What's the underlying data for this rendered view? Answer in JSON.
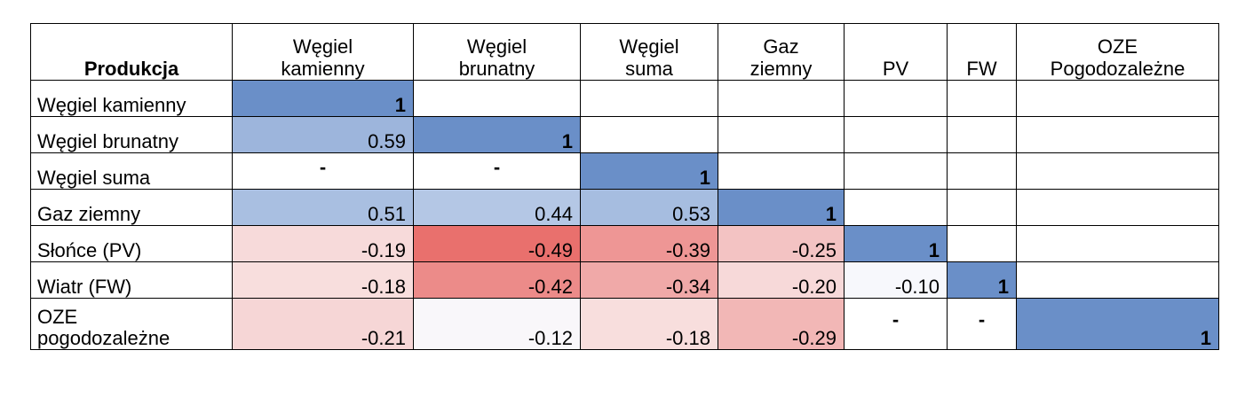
{
  "table": {
    "corner_label": "Produkcja",
    "columns": [
      [
        "Węgiel",
        "kamienny"
      ],
      [
        "Węgiel",
        "brunatny"
      ],
      [
        "Węgiel",
        "suma"
      ],
      [
        "Gaz",
        "ziemny"
      ],
      [
        "",
        "PV"
      ],
      [
        "",
        "FW"
      ],
      [
        "OZE",
        "Pogodozależne"
      ]
    ],
    "rows": [
      {
        "label": [
          "Węgiel kamienny"
        ],
        "cells": [
          {
            "v": "1",
            "bg": "#6a8fc8"
          },
          {
            "v": "",
            "bg": "#ffffff"
          },
          {
            "v": "",
            "bg": "#ffffff"
          },
          {
            "v": "",
            "bg": "#ffffff"
          },
          {
            "v": "",
            "bg": "#ffffff"
          },
          {
            "v": "",
            "bg": "#ffffff"
          },
          {
            "v": "",
            "bg": "#ffffff"
          }
        ]
      },
      {
        "label": [
          "Węgiel brunatny"
        ],
        "cells": [
          {
            "v": "0.59",
            "bg": "#9db5dc"
          },
          {
            "v": "1",
            "bg": "#6a8fc8"
          },
          {
            "v": "",
            "bg": "#ffffff"
          },
          {
            "v": "",
            "bg": "#ffffff"
          },
          {
            "v": "",
            "bg": "#ffffff"
          },
          {
            "v": "",
            "bg": "#ffffff"
          },
          {
            "v": "",
            "bg": "#ffffff"
          }
        ]
      },
      {
        "label": [
          "Węgiel suma"
        ],
        "cells": [
          {
            "v": "-",
            "bg": "#ffffff"
          },
          {
            "v": "-",
            "bg": "#ffffff"
          },
          {
            "v": "1",
            "bg": "#6a8fc8"
          },
          {
            "v": "",
            "bg": "#ffffff"
          },
          {
            "v": "",
            "bg": "#ffffff"
          },
          {
            "v": "",
            "bg": "#ffffff"
          },
          {
            "v": "",
            "bg": "#ffffff"
          }
        ]
      },
      {
        "label": [
          "Gaz ziemny"
        ],
        "cells": [
          {
            "v": "0.51",
            "bg": "#a9bfe1"
          },
          {
            "v": "0.44",
            "bg": "#b4c7e5"
          },
          {
            "v": "0.53",
            "bg": "#a6bde0"
          },
          {
            "v": "1",
            "bg": "#6a8fc8"
          },
          {
            "v": "",
            "bg": "#ffffff"
          },
          {
            "v": "",
            "bg": "#ffffff"
          },
          {
            "v": "",
            "bg": "#ffffff"
          }
        ]
      },
      {
        "label": [
          "Słońce (PV)"
        ],
        "cells": [
          {
            "v": "-0.19",
            "bg": "#f7dada"
          },
          {
            "v": "-0.49",
            "bg": "#e9706d"
          },
          {
            "v": "-0.39",
            "bg": "#ee9695"
          },
          {
            "v": "-0.25",
            "bg": "#f3c3c3"
          },
          {
            "v": "1",
            "bg": "#6a8fc8"
          },
          {
            "v": "",
            "bg": "#ffffff"
          },
          {
            "v": "",
            "bg": "#ffffff"
          }
        ]
      },
      {
        "label": [
          "Wiatr (FW)"
        ],
        "cells": [
          {
            "v": "-0.18",
            "bg": "#f8dedd"
          },
          {
            "v": "-0.42",
            "bg": "#ec8b89"
          },
          {
            "v": "-0.34",
            "bg": "#f0a9a8"
          },
          {
            "v": "-0.20",
            "bg": "#f7d9d9"
          },
          {
            "v": "-0.10",
            "bg": "#f7f8fc"
          },
          {
            "v": "1",
            "bg": "#6a8fc8"
          },
          {
            "v": "",
            "bg": "#ffffff"
          }
        ]
      },
      {
        "label": [
          "OZE",
          "pogodozależne"
        ],
        "cells": [
          {
            "v": "-0.21",
            "bg": "#f6d6d6"
          },
          {
            "v": "-0.12",
            "bg": "#f9f7fa"
          },
          {
            "v": "-0.18",
            "bg": "#f8dedd"
          },
          {
            "v": "-0.29",
            "bg": "#f2b7b6"
          },
          {
            "v": "-",
            "bg": "#ffffff"
          },
          {
            "v": "-",
            "bg": "#ffffff"
          },
          {
            "v": "1",
            "bg": "#6a8fc8"
          }
        ]
      }
    ]
  }
}
